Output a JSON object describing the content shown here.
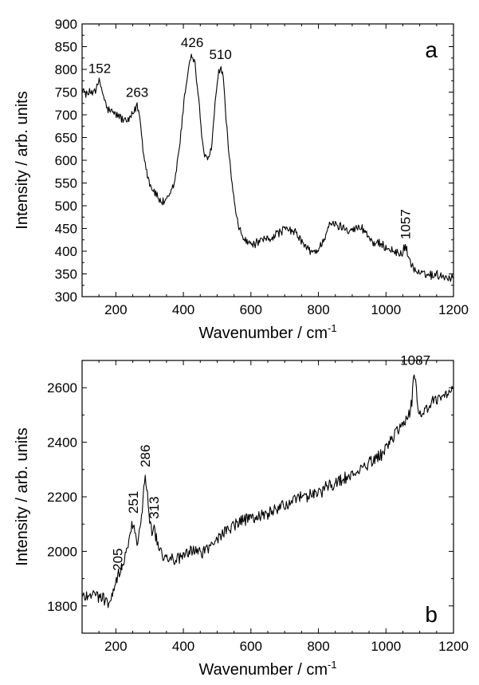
{
  "chart_data": [
    {
      "type": "line",
      "panel_label": "a",
      "xlabel": "Wavenumber / cm",
      "xlabel_sup": "-1",
      "ylabel": "Intensity / arb. units",
      "xlim": [
        100,
        1200
      ],
      "ylim": [
        300,
        900
      ],
      "x_ticks": [
        200,
        400,
        600,
        800,
        1000,
        1200
      ],
      "y_ticks": [
        300,
        350,
        400,
        450,
        500,
        550,
        600,
        650,
        700,
        750,
        800,
        850,
        900
      ],
      "grid": false,
      "legend": "none",
      "series": [
        {
          "values_xy": [
            [
              100,
              755
            ],
            [
              115,
              745
            ],
            [
              130,
              752
            ],
            [
              145,
              760
            ],
            [
              152,
              775
            ],
            [
              160,
              750
            ],
            [
              175,
              712
            ],
            [
              190,
              705
            ],
            [
              205,
              700
            ],
            [
              220,
              690
            ],
            [
              235,
              685
            ],
            [
              250,
              700
            ],
            [
              263,
              722
            ],
            [
              270,
              700
            ],
            [
              280,
              630
            ],
            [
              290,
              580
            ],
            [
              300,
              548
            ],
            [
              315,
              530
            ],
            [
              330,
              512
            ],
            [
              345,
              505
            ],
            [
              360,
              522
            ],
            [
              375,
              555
            ],
            [
              390,
              640
            ],
            [
              405,
              750
            ],
            [
              418,
              818
            ],
            [
              426,
              832
            ],
            [
              434,
              815
            ],
            [
              445,
              735
            ],
            [
              455,
              650
            ],
            [
              465,
              603
            ],
            [
              475,
              600
            ],
            [
              485,
              640
            ],
            [
              495,
              735
            ],
            [
              505,
              792
            ],
            [
              510,
              805
            ],
            [
              517,
              785
            ],
            [
              525,
              710
            ],
            [
              535,
              610
            ],
            [
              545,
              545
            ],
            [
              555,
              480
            ],
            [
              565,
              450
            ],
            [
              575,
              432
            ],
            [
              590,
              418
            ],
            [
              605,
              415
            ],
            [
              620,
              418
            ],
            [
              640,
              425
            ],
            [
              660,
              430
            ],
            [
              680,
              440
            ],
            [
              700,
              448
            ],
            [
              720,
              445
            ],
            [
              740,
              435
            ],
            [
              760,
              410
            ],
            [
              780,
              398
            ],
            [
              800,
              402
            ],
            [
              815,
              425
            ],
            [
              830,
              455
            ],
            [
              845,
              460
            ],
            [
              860,
              455
            ],
            [
              875,
              452
            ],
            [
              890,
              448
            ],
            [
              905,
              448
            ],
            [
              920,
              452
            ],
            [
              935,
              448
            ],
            [
              950,
              430
            ],
            [
              965,
              418
            ],
            [
              980,
              415
            ],
            [
              995,
              410
            ],
            [
              1010,
              405
            ],
            [
              1025,
              398
            ],
            [
              1040,
              395
            ],
            [
              1050,
              398
            ],
            [
              1057,
              412
            ],
            [
              1065,
              392
            ],
            [
              1075,
              370
            ],
            [
              1090,
              355
            ],
            [
              1110,
              348
            ],
            [
              1130,
              348
            ],
            [
              1150,
              348
            ],
            [
              1170,
              345
            ],
            [
              1190,
              342
            ],
            [
              1200,
              340
            ]
          ]
        }
      ],
      "annotations": [
        {
          "text": "152",
          "x": 152,
          "y": 775,
          "rotate": 0
        },
        {
          "text": "263",
          "x": 263,
          "y": 722,
          "rotate": 0
        },
        {
          "text": "426",
          "x": 426,
          "y": 832,
          "rotate": 0
        },
        {
          "text": "510",
          "x": 510,
          "y": 805,
          "rotate": 0
        },
        {
          "text": "1057",
          "x": 1057,
          "y": 412,
          "rotate": -90
        }
      ]
    },
    {
      "type": "line",
      "panel_label": "b",
      "xlabel": "Wavenumber / cm",
      "xlabel_sup": "-1",
      "ylabel": "Intensity / arb. units",
      "xlim": [
        100,
        1200
      ],
      "ylim": [
        1700,
        2700
      ],
      "x_ticks": [
        200,
        400,
        600,
        800,
        1000,
        1200
      ],
      "y_ticks": [
        1800,
        2000,
        2200,
        2400,
        2600
      ],
      "grid": false,
      "legend": "none",
      "series": [
        {
          "values_xy": [
            [
              100,
              1830
            ],
            [
              115,
              1842
            ],
            [
              130,
              1848
            ],
            [
              145,
              1838
            ],
            [
              160,
              1828
            ],
            [
              175,
              1815
            ],
            [
              190,
              1830
            ],
            [
              205,
              1905
            ],
            [
              215,
              1940
            ],
            [
              225,
              1970
            ],
            [
              235,
              2010
            ],
            [
              245,
              2075
            ],
            [
              251,
              2115
            ],
            [
              258,
              2060
            ],
            [
              265,
              2040
            ],
            [
              272,
              2075
            ],
            [
              280,
              2180
            ],
            [
              286,
              2285
            ],
            [
              292,
              2230
            ],
            [
              300,
              2120
            ],
            [
              307,
              2070
            ],
            [
              313,
              2095
            ],
            [
              322,
              2035
            ],
            [
              335,
              1995
            ],
            [
              350,
              1980
            ],
            [
              365,
              1975
            ],
            [
              380,
              1970
            ],
            [
              395,
              1975
            ],
            [
              410,
              1990
            ],
            [
              425,
              2000
            ],
            [
              440,
              2005
            ],
            [
              455,
              1995
            ],
            [
              470,
              2010
            ],
            [
              490,
              2030
            ],
            [
              510,
              2060
            ],
            [
              530,
              2080
            ],
            [
              550,
              2095
            ],
            [
              575,
              2110
            ],
            [
              600,
              2120
            ],
            [
              625,
              2130
            ],
            [
              650,
              2140
            ],
            [
              675,
              2155
            ],
            [
              700,
              2170
            ],
            [
              725,
              2185
            ],
            [
              750,
              2195
            ],
            [
              775,
              2205
            ],
            [
              800,
              2220
            ],
            [
              825,
              2235
            ],
            [
              850,
              2250
            ],
            [
              875,
              2265
            ],
            [
              900,
              2280
            ],
            [
              925,
              2300
            ],
            [
              950,
              2320
            ],
            [
              975,
              2345
            ],
            [
              1000,
              2375
            ],
            [
              1015,
              2410
            ],
            [
              1030,
              2440
            ],
            [
              1045,
              2460
            ],
            [
              1060,
              2475
            ],
            [
              1075,
              2530
            ],
            [
              1083,
              2655
            ],
            [
              1087,
              2620
            ],
            [
              1095,
              2520
            ],
            [
              1110,
              2510
            ],
            [
              1125,
              2530
            ],
            [
              1140,
              2545
            ],
            [
              1155,
              2555
            ],
            [
              1170,
              2565
            ],
            [
              1185,
              2580
            ],
            [
              1200,
              2585
            ]
          ]
        }
      ],
      "annotations": [
        {
          "text": "205",
          "x": 205,
          "y": 1905,
          "rotate": -90
        },
        {
          "text": "251",
          "x": 251,
          "y": 2115,
          "rotate": -90
        },
        {
          "text": "286",
          "x": 286,
          "y": 2285,
          "rotate": -90
        },
        {
          "text": "313",
          "x": 313,
          "y": 2095,
          "rotate": -90
        },
        {
          "text": "1087",
          "x": 1087,
          "y": 2655,
          "rotate": 0
        }
      ]
    }
  ]
}
